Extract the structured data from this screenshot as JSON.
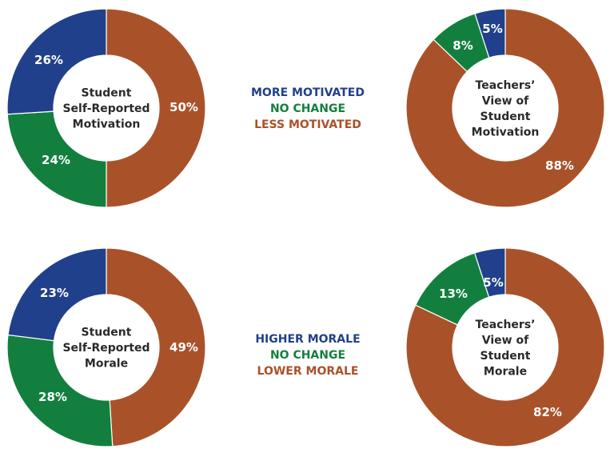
{
  "colors": {
    "more": "#21408C",
    "no_change": "#137F3E",
    "less": "#A9522A",
    "center_text": "#2a2a2a"
  },
  "legends": [
    {
      "more": "MORE MOTIVATED",
      "no_change": "NO CHANGE",
      "less": "LESS MOTIVATED"
    },
    {
      "more": "HIGHER MORALE",
      "no_change": "NO CHANGE",
      "less": "LOWER MORALE"
    }
  ],
  "chart_data": [
    {
      "type": "pie",
      "title": "Student Self-Reported Motivation",
      "center_lines": [
        "Student",
        "Self-Reported",
        "Motivation"
      ],
      "categories": [
        "Less Motivated",
        "No Change",
        "More Motivated"
      ],
      "values": [
        50,
        24,
        26
      ],
      "labels": [
        "50%",
        "24%",
        "26%"
      ],
      "legend_position": "right"
    },
    {
      "type": "pie",
      "title": "Teachers' View of Student Motivation",
      "center_lines": [
        "Teachers’",
        "View of",
        "Student",
        "Motivation"
      ],
      "categories": [
        "Less Motivated",
        "No Change",
        "More Motivated"
      ],
      "values": [
        88,
        8,
        5
      ],
      "labels": [
        "88%",
        "8%",
        "5%"
      ],
      "legend_position": "left"
    },
    {
      "type": "pie",
      "title": "Student Self-Reported Morale",
      "center_lines": [
        "Student",
        "Self-Reported",
        "Morale"
      ],
      "categories": [
        "Lower Morale",
        "No Change",
        "Higher Morale"
      ],
      "values": [
        49,
        28,
        23
      ],
      "labels": [
        "49%",
        "28%",
        "23%"
      ],
      "legend_position": "right"
    },
    {
      "type": "pie",
      "title": "Teachers' View of Student Morale",
      "center_lines": [
        "Teachers’",
        "View of",
        "Student",
        "Morale"
      ],
      "categories": [
        "Lower Morale",
        "No Change",
        "Higher Morale"
      ],
      "values": [
        82,
        13,
        5
      ],
      "labels": [
        "82%",
        "13%",
        "5%"
      ],
      "legend_position": "left"
    }
  ]
}
